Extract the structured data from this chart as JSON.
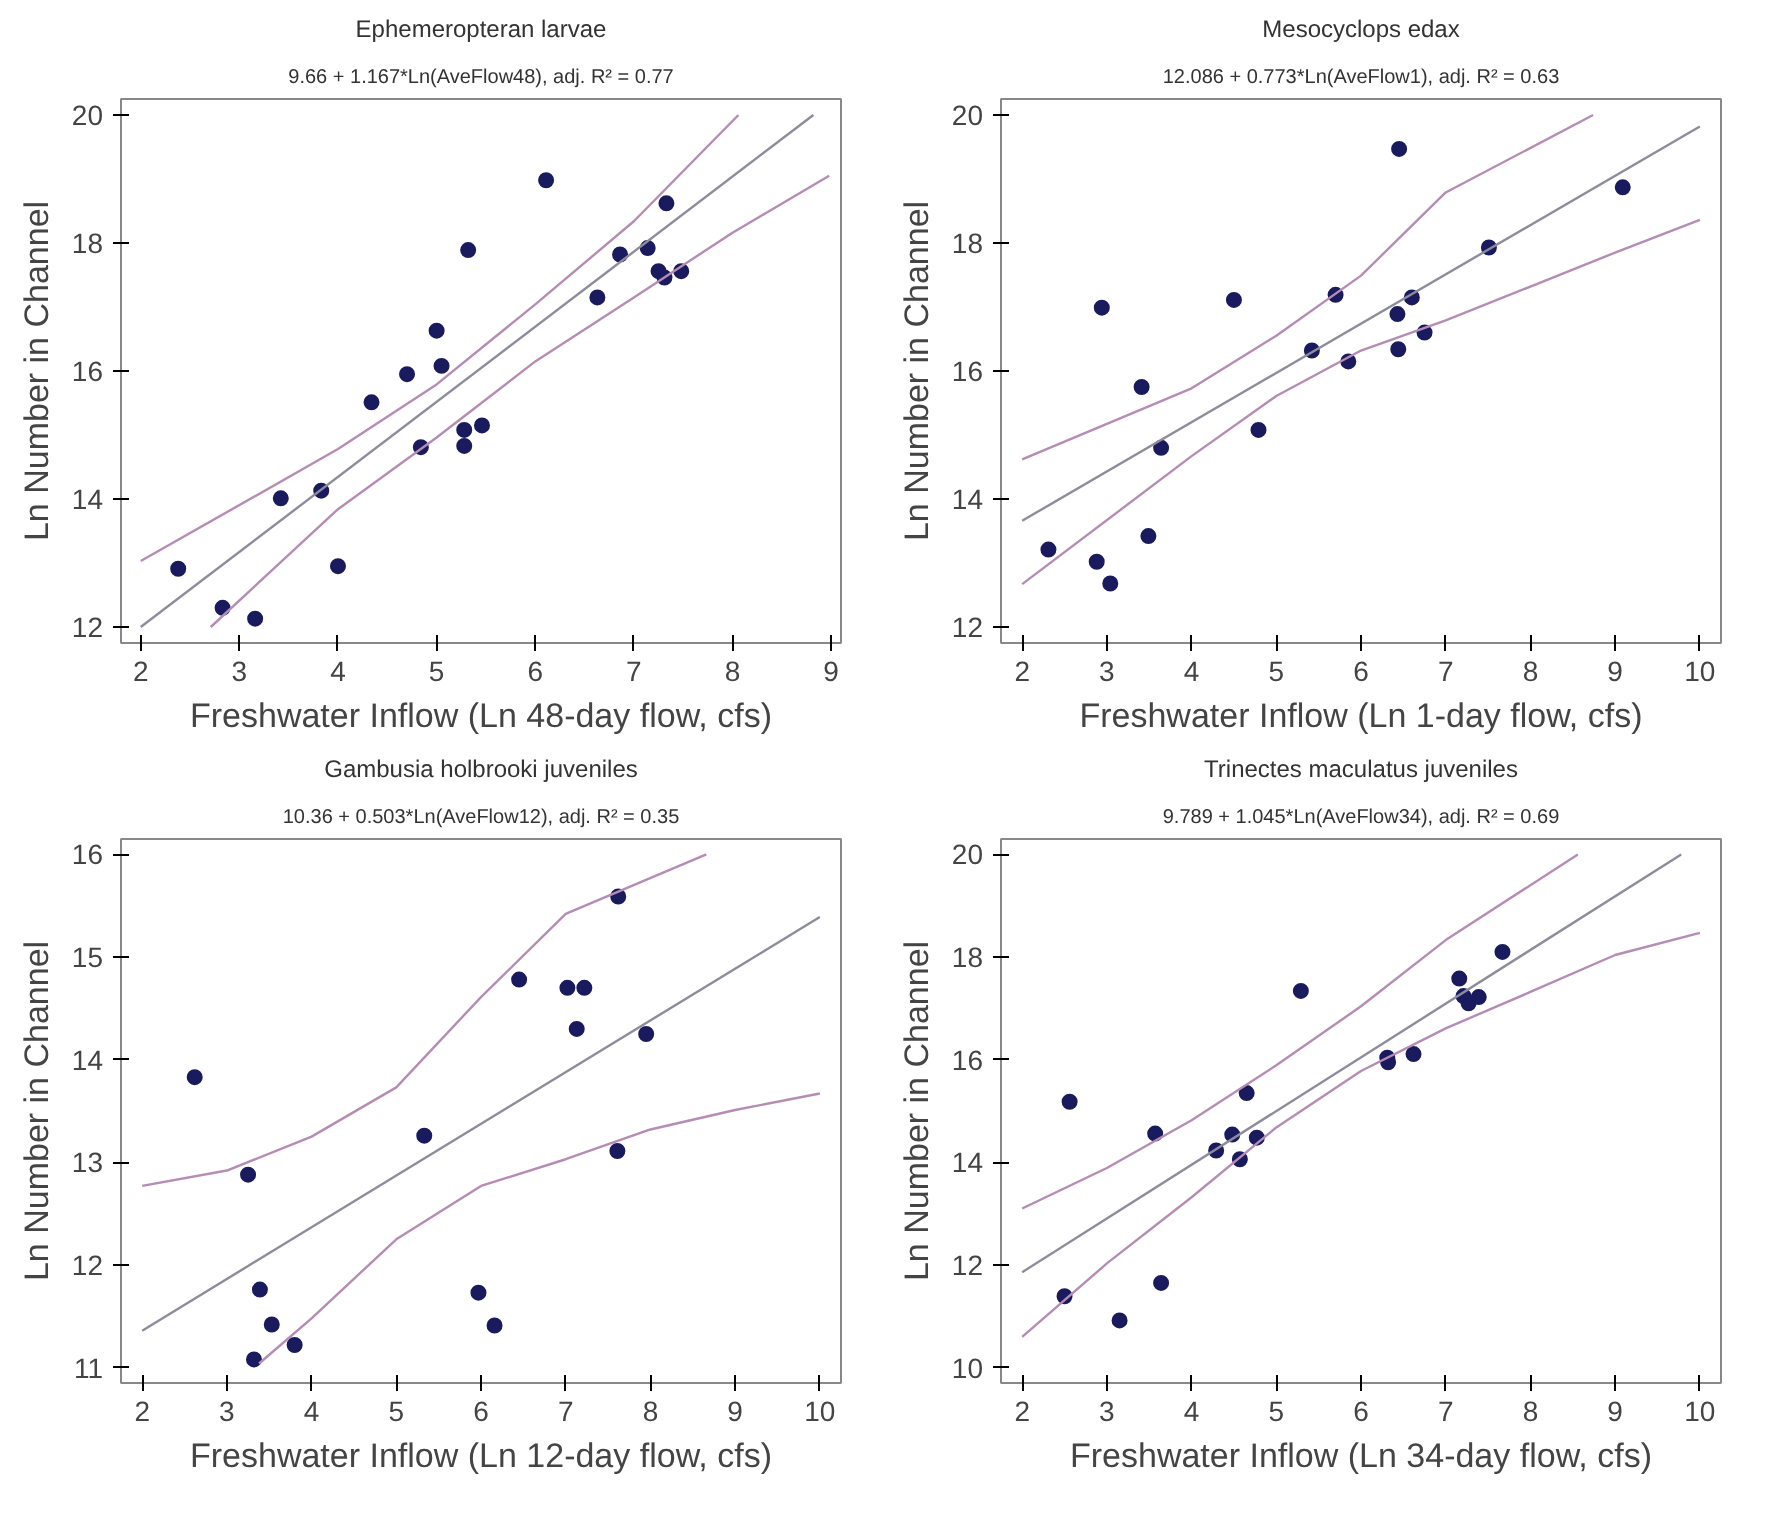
{
  "chart_data": [
    {
      "type": "scatter",
      "title": "Ephemeropteran larvae",
      "subtitle": "9.66 + 1.167*Ln(AveFlow48), adj. R² = 0.77",
      "xlabel": "Freshwater Inflow (Ln 48-day flow, cfs)",
      "ylabel": "Ln Number in Channel",
      "xlim": [
        1.8,
        9.1
      ],
      "ylim": [
        11.75,
        20.25
      ],
      "xticks": [
        2,
        3,
        4,
        5,
        6,
        7,
        8,
        9
      ],
      "yticks": [
        12,
        14,
        16,
        18,
        20
      ],
      "series": [
        {
          "marker": "circle",
          "color": "#1a1a5e",
          "x": [
            2.38,
            2.83,
            3.16,
            3.42,
            3.83,
            4.0,
            4.34,
            4.7,
            4.84,
            5.0,
            5.05,
            5.28,
            5.28,
            5.32,
            5.46,
            6.11,
            6.63,
            6.86,
            7.14,
            7.33,
            7.25,
            7.31,
            7.48
          ],
          "values": [
            12.91,
            12.3,
            12.13,
            14.01,
            14.13,
            12.95,
            15.51,
            15.95,
            14.81,
            16.63,
            16.08,
            15.08,
            14.83,
            17.89,
            15.15,
            18.98,
            17.15,
            17.82,
            17.92,
            18.62,
            17.56,
            17.46,
            17.56
          ]
        },
        {
          "type": "line",
          "color": "#8c8c9c",
          "x": [
            2,
            8.82
          ],
          "values": [
            12.0,
            20.0
          ]
        },
        {
          "type": "line",
          "color": "#b48cb4",
          "x": [
            2,
            4,
            5,
            6,
            7,
            8.06
          ],
          "values": [
            13.03,
            14.78,
            15.79,
            17.04,
            18.34,
            20.0
          ]
        },
        {
          "type": "line",
          "color": "#b48cb4",
          "x": [
            2.71,
            4,
            5,
            6,
            7,
            8,
            8.98
          ],
          "values": [
            12.0,
            13.84,
            14.96,
            16.15,
            17.15,
            18.16,
            19.05
          ]
        }
      ]
    },
    {
      "type": "scatter",
      "title": "Mesocyclops edax",
      "subtitle": "12.086 + 0.773*Ln(AveFlow1), adj. R² = 0.63",
      "xlabel": "Freshwater Inflow (Ln 1-day flow, cfs)",
      "ylabel": "Ln Number in Channel",
      "xlim": [
        1.75,
        10.25
      ],
      "ylim": [
        11.75,
        20.25
      ],
      "xticks": [
        2,
        3,
        4,
        5,
        6,
        7,
        8,
        9,
        10
      ],
      "yticks": [
        12,
        14,
        16,
        18,
        20
      ],
      "series": [
        {
          "marker": "circle",
          "color": "#1a1a5e",
          "x": [
            2.31,
            2.94,
            2.88,
            3.04,
            3.41,
            3.64,
            3.49,
            4.5,
            4.79,
            5.42,
            5.7,
            5.85,
            6.45,
            6.43,
            6.44,
            6.6,
            6.75,
            7.51,
            9.09
          ],
          "values": [
            13.21,
            16.99,
            13.02,
            12.68,
            15.75,
            14.8,
            13.42,
            17.11,
            15.08,
            16.32,
            17.19,
            16.15,
            19.47,
            16.89,
            16.34,
            17.15,
            16.6,
            17.93,
            18.87
          ]
        },
        {
          "type": "line",
          "color": "#8c8c9c",
          "x": [
            2,
            10
          ],
          "values": [
            13.66,
            19.82
          ]
        },
        {
          "type": "line",
          "color": "#b48cb4",
          "x": [
            2,
            4,
            5,
            6,
            7,
            8.74
          ],
          "values": [
            14.62,
            15.73,
            16.55,
            17.49,
            18.79,
            20.0
          ]
        },
        {
          "type": "line",
          "color": "#b48cb4",
          "x": [
            2,
            4,
            5,
            6,
            7,
            8,
            9,
            10
          ],
          "values": [
            12.67,
            14.67,
            15.61,
            16.32,
            16.79,
            17.32,
            17.85,
            18.36
          ]
        }
      ]
    },
    {
      "type": "scatter",
      "title": "Gambusia holbrooki juveniles",
      "subtitle": "10.36 + 0.503*Ln(AveFlow12), adj. R² = 0.35",
      "xlabel": "Freshwater Inflow (Ln 12-day flow, cfs)",
      "ylabel": "Ln Number in Channel",
      "xlim": [
        1.75,
        10.25
      ],
      "ylim": [
        10.85,
        16.15
      ],
      "xticks": [
        2,
        3,
        4,
        5,
        6,
        7,
        8,
        9,
        10
      ],
      "yticks": [
        11,
        12,
        13,
        14,
        15,
        16
      ],
      "series": [
        {
          "marker": "circle",
          "color": "#1a1a5e",
          "x": [
            2.62,
            3.25,
            3.39,
            3.53,
            3.32,
            3.8,
            5.33,
            5.97,
            6.16,
            6.45,
            7.02,
            7.22,
            7.13,
            7.62,
            7.95,
            7.61
          ],
          "values": [
            13.83,
            12.88,
            11.76,
            11.42,
            11.08,
            11.22,
            13.26,
            11.73,
            11.41,
            14.78,
            14.7,
            14.7,
            14.3,
            15.59,
            14.25,
            13.11
          ]
        },
        {
          "type": "line",
          "color": "#8c8c9c",
          "x": [
            2,
            10
          ],
          "values": [
            11.36,
            15.39
          ]
        },
        {
          "type": "line",
          "color": "#b48cb4",
          "x": [
            2,
            3,
            4,
            5,
            6,
            7,
            8.66
          ],
          "values": [
            12.77,
            12.92,
            13.25,
            13.73,
            14.61,
            15.42,
            16.0
          ]
        },
        {
          "type": "line",
          "color": "#b48cb4",
          "x": [
            3.38,
            4,
            5,
            6,
            7,
            8,
            9,
            10
          ],
          "values": [
            11.04,
            11.48,
            12.25,
            12.77,
            13.03,
            13.32,
            13.51,
            13.67
          ]
        }
      ]
    },
    {
      "type": "scatter",
      "title": "Trinectes maculatus juveniles",
      "subtitle": "9.789 + 1.045*Ln(AveFlow34), adj. R² = 0.69",
      "xlabel": "Freshwater Inflow (Ln 34-day flow, cfs)",
      "ylabel": "Ln Number in Channel",
      "xlim": [
        1.75,
        10.25
      ],
      "ylim": [
        9.7,
        20.3
      ],
      "xticks": [
        2,
        3,
        4,
        5,
        6,
        7,
        8,
        9,
        10
      ],
      "yticks": [
        10,
        12,
        14,
        16,
        18,
        20
      ],
      "series": [
        {
          "marker": "circle",
          "color": "#1a1a5e",
          "x": [
            2.56,
            2.5,
            3.15,
            3.57,
            3.64,
            4.29,
            4.48,
            4.57,
            4.65,
            4.77,
            5.29,
            6.31,
            6.32,
            6.62,
            7.16,
            7.21,
            7.27,
            7.39,
            7.67
          ],
          "values": [
            15.18,
            11.39,
            10.92,
            14.56,
            11.65,
            14.23,
            14.54,
            14.06,
            15.35,
            14.48,
            17.34,
            16.04,
            15.95,
            16.11,
            17.58,
            17.24,
            17.1,
            17.22,
            18.1
          ]
        },
        {
          "type": "line",
          "color": "#8c8c9c",
          "x": [
            2,
            9.78
          ],
          "values": [
            11.86,
            20.0
          ]
        },
        {
          "type": "line",
          "color": "#b48cb4",
          "x": [
            2,
            3,
            4,
            5,
            6,
            7,
            8.56
          ],
          "values": [
            13.1,
            13.89,
            14.82,
            15.89,
            17.04,
            18.33,
            20.0
          ]
        },
        {
          "type": "line",
          "color": "#b48cb4",
          "x": [
            2,
            3,
            4,
            5,
            6,
            7,
            8,
            9,
            10
          ],
          "values": [
            10.6,
            12.03,
            13.32,
            14.68,
            15.78,
            16.61,
            17.32,
            18.04,
            18.47
          ]
        }
      ]
    }
  ]
}
